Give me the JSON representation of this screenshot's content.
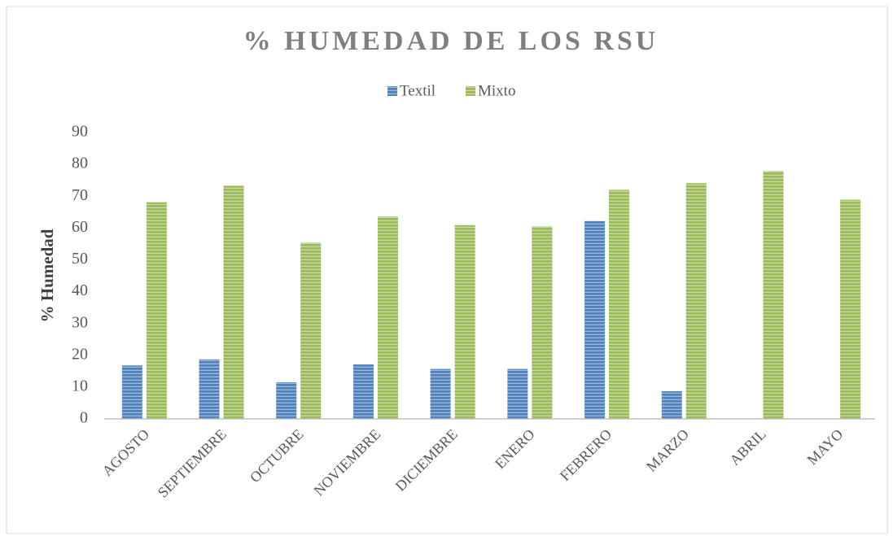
{
  "chart_data": {
    "type": "bar",
    "title": "% HUMEDAD DE LOS RSU",
    "ylabel": "% Humedad",
    "categories": [
      "AGOSTO",
      "SEPTIEMBRE",
      "OCTUBRE",
      "NOVIEMBRE",
      "DICIEMBRE",
      "ENERO",
      "FEBRERO",
      "MARZO",
      "ABRIL",
      "MAYO"
    ],
    "series": [
      {
        "name": "Textil",
        "color": "#4f81bd",
        "values": [
          16.8,
          18.7,
          11.5,
          17.1,
          15.7,
          15.7,
          62.2,
          8.7,
          null,
          null
        ]
      },
      {
        "name": "Mixto",
        "color": "#9bbb59",
        "values": [
          68.1,
          73.3,
          55.4,
          63.6,
          60.9,
          60.5,
          72.0,
          74.1,
          77.9,
          68.9
        ]
      }
    ],
    "ylim": [
      0,
      90
    ],
    "yticks": [
      0,
      10,
      20,
      30,
      40,
      50,
      60,
      70,
      80,
      90
    ],
    "legend": "top"
  }
}
